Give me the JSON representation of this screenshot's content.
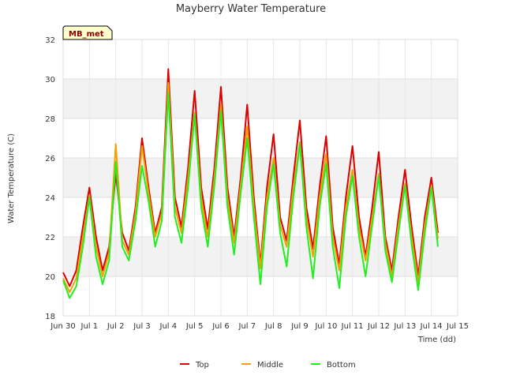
{
  "chart_data": {
    "type": "line",
    "title": "Mayberry Water Temperature",
    "xlabel": "Time (dd)",
    "ylabel": "Water Temperature (C)",
    "site_tag": "MB_met",
    "xlim": [
      0,
      15
    ],
    "ylim": [
      18,
      32
    ],
    "x_ticks": [
      0,
      1,
      2,
      3,
      4,
      5,
      6,
      7,
      8,
      9,
      10,
      11,
      12,
      13,
      14,
      15
    ],
    "x_tick_labels": [
      "Jun 30",
      "Jul 1",
      "Jul 2",
      "Jul 3",
      "Jul 4",
      "Jul 5",
      "Jul 6",
      "Jul 7",
      "Jul 8",
      "Jul 9",
      "Jul 10",
      "Jul 11",
      "Jul 12",
      "Jul 13",
      "Jul 14",
      "Jul 15"
    ],
    "y_ticks": [
      18,
      20,
      22,
      24,
      26,
      28,
      30,
      32
    ],
    "grid": true,
    "legend_position": "bottom-center",
    "series": [
      {
        "name": "Top",
        "color": "#dd0000",
        "x": [
          0.0,
          0.25,
          0.5,
          0.75,
          1.0,
          1.25,
          1.5,
          1.75,
          2.0,
          2.25,
          2.5,
          2.75,
          3.0,
          3.25,
          3.5,
          3.75,
          4.0,
          4.25,
          4.5,
          4.75,
          5.0,
          5.25,
          5.5,
          5.75,
          6.0,
          6.25,
          6.5,
          6.75,
          7.0,
          7.25,
          7.5,
          7.75,
          8.0,
          8.25,
          8.5,
          8.75,
          9.0,
          9.25,
          9.5,
          9.75,
          10.0,
          10.25,
          10.5,
          10.75,
          11.0,
          11.25,
          11.5,
          11.75,
          12.0,
          12.25,
          12.5,
          12.75,
          13.0,
          13.25,
          13.5,
          13.75,
          14.0,
          14.25
        ],
        "y": [
          20.2,
          19.5,
          20.3,
          22.5,
          24.5,
          22.0,
          20.3,
          21.5,
          25.2,
          22.2,
          21.3,
          23.5,
          27.0,
          24.5,
          22.2,
          23.5,
          30.5,
          24.0,
          22.5,
          25.5,
          29.4,
          24.5,
          22.4,
          25.5,
          29.6,
          24.5,
          22.0,
          25.0,
          28.7,
          24.0,
          20.6,
          24.5,
          27.2,
          23.0,
          21.8,
          25.0,
          27.9,
          23.5,
          21.4,
          24.5,
          27.1,
          22.5,
          20.6,
          24.0,
          26.6,
          23.0,
          21.0,
          23.5,
          26.3,
          22.0,
          20.3,
          23.0,
          25.4,
          22.5,
          20.0,
          23.0,
          25.0,
          22.2
        ]
      },
      {
        "name": "Middle",
        "color": "#f5a000",
        "x": [
          0.0,
          0.25,
          0.5,
          0.75,
          1.0,
          1.25,
          1.5,
          1.75,
          2.0,
          2.25,
          2.5,
          2.75,
          3.0,
          3.25,
          3.5,
          3.75,
          4.0,
          4.25,
          4.5,
          4.75,
          5.0,
          5.25,
          5.5,
          5.75,
          6.0,
          6.25,
          6.5,
          6.75,
          7.0,
          7.25,
          7.5,
          7.75,
          8.0,
          8.25,
          8.5,
          8.75,
          9.0,
          9.25,
          9.5,
          9.75,
          10.0,
          10.25,
          10.5,
          10.75,
          11.0,
          11.25,
          11.5,
          11.75,
          12.0,
          12.25,
          12.5,
          12.75,
          13.0,
          13.25,
          13.5,
          13.75,
          14.0,
          14.25
        ],
        "y": [
          19.9,
          19.2,
          19.9,
          22.0,
          24.1,
          21.5,
          20.0,
          21.2,
          26.7,
          21.8,
          21.1,
          23.2,
          26.6,
          24.2,
          22.0,
          23.2,
          29.8,
          23.5,
          22.2,
          25.0,
          28.3,
          24.0,
          22.0,
          25.0,
          28.7,
          24.0,
          21.7,
          24.6,
          27.6,
          23.5,
          20.4,
          24.0,
          26.0,
          22.6,
          21.5,
          24.5,
          26.8,
          23.0,
          21.0,
          24.0,
          26.2,
          22.0,
          20.3,
          23.5,
          25.4,
          22.5,
          20.8,
          23.0,
          25.2,
          21.7,
          20.0,
          22.6,
          24.7,
          22.0,
          19.7,
          22.6,
          24.6,
          21.9
        ]
      },
      {
        "name": "Bottom",
        "color": "#22ee22",
        "x": [
          0.0,
          0.25,
          0.5,
          0.75,
          1.0,
          1.25,
          1.5,
          1.75,
          2.0,
          2.25,
          2.5,
          2.75,
          3.0,
          3.25,
          3.5,
          3.75,
          4.0,
          4.25,
          4.5,
          4.75,
          5.0,
          5.25,
          5.5,
          5.75,
          6.0,
          6.25,
          6.5,
          6.75,
          7.0,
          7.25,
          7.5,
          7.75,
          8.0,
          8.25,
          8.5,
          8.75,
          9.0,
          9.25,
          9.5,
          9.75,
          10.0,
          10.25,
          10.5,
          10.75,
          11.0,
          11.25,
          11.5,
          11.75,
          12.0,
          12.25,
          12.5,
          12.75,
          13.0,
          13.25,
          13.5,
          13.75,
          14.0,
          14.25
        ],
        "y": [
          19.8,
          18.9,
          19.5,
          21.5,
          24.0,
          21.0,
          19.6,
          20.8,
          25.8,
          21.5,
          20.8,
          22.8,
          25.6,
          23.8,
          21.5,
          22.8,
          29.3,
          23.0,
          21.7,
          24.5,
          28.2,
          23.5,
          21.5,
          24.6,
          28.4,
          23.5,
          21.1,
          24.2,
          27.0,
          23.0,
          19.6,
          23.5,
          25.7,
          22.2,
          20.5,
          24.0,
          26.7,
          22.5,
          19.9,
          23.5,
          25.7,
          21.5,
          19.4,
          23.0,
          25.1,
          22.0,
          20.0,
          22.6,
          25.1,
          21.3,
          19.7,
          22.2,
          24.6,
          21.6,
          19.3,
          22.2,
          24.5,
          21.5
        ]
      }
    ]
  }
}
